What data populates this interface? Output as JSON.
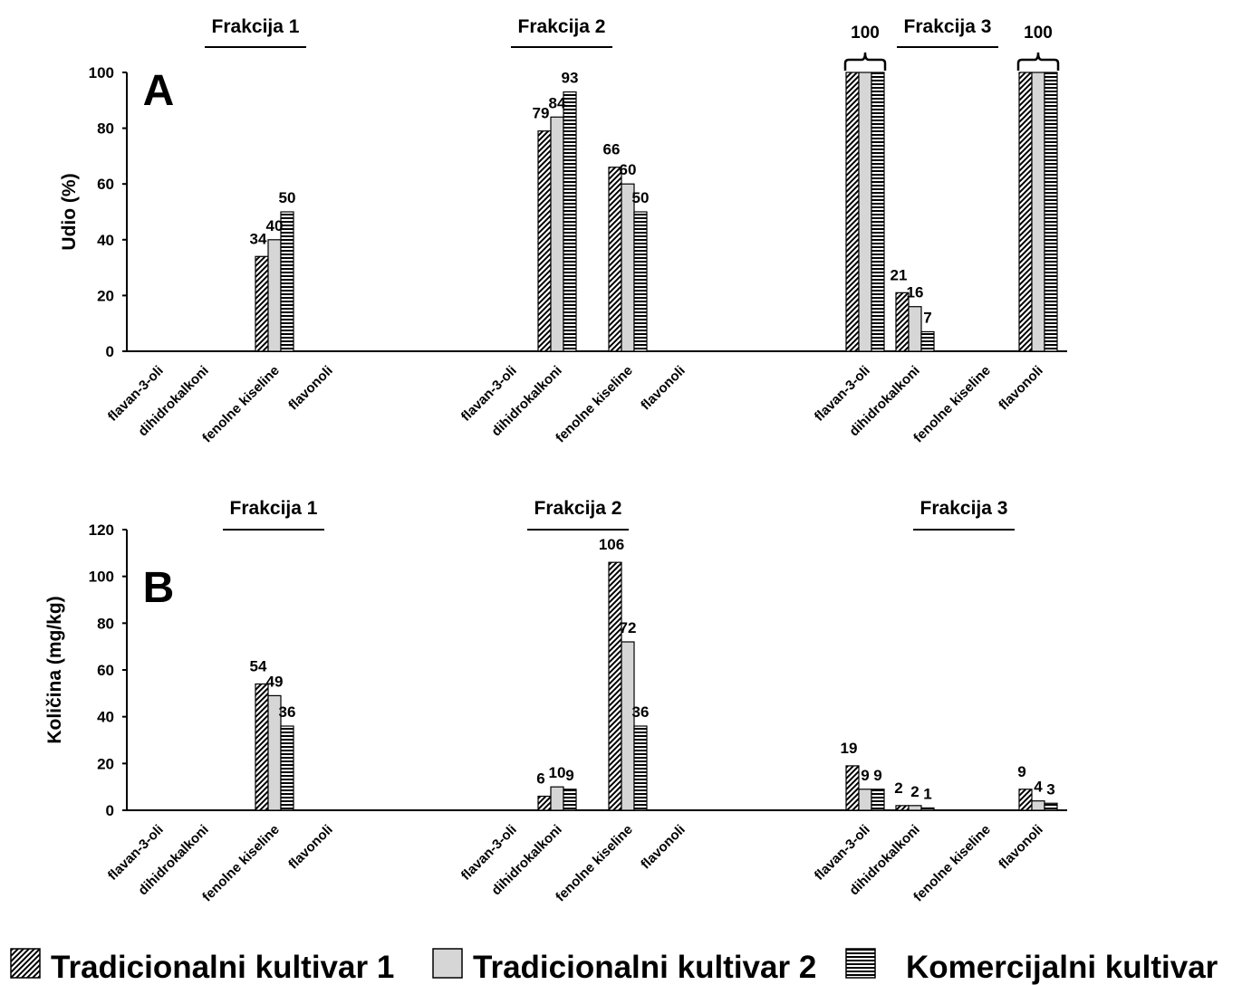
{
  "colors": {
    "axis": "#000000",
    "bar_stroke": "#000000",
    "tradicionalni_2_fill": "#d6d6d6",
    "background": "#ffffff"
  },
  "legend": {
    "items": [
      {
        "label": "Tradicionalni kultivar 1",
        "pattern": "diagonal-hatch"
      },
      {
        "label": "Tradicionalni kultivar 2",
        "pattern": "solid-gray"
      },
      {
        "label": "Komercijalni kultivar",
        "pattern": "horizontal-stripes"
      }
    ]
  },
  "chart_data": [
    {
      "type": "bar",
      "panel_letter": "A",
      "ylabel": "Udio  (%)",
      "ylim": [
        0,
        100
      ],
      "yticks": [
        "0",
        "20",
        "40",
        "60",
        "80",
        "100"
      ],
      "groups": [
        {
          "title": "Frakcija 1",
          "categories": [
            "flavan-3-oli",
            "dihidrokalkoni",
            "fenolne kiseline",
            "flavonoli"
          ]
        },
        {
          "title": "Frakcija 2",
          "categories": [
            "flavan-3-oli",
            "dihidrokalkoni",
            "fenolne kiseline",
            "flavonoli"
          ]
        },
        {
          "title": "Frakcija 3",
          "categories": [
            "flavan-3-oli",
            "dihidrokalkoni",
            "fenolne kiseline",
            "flavonoli"
          ]
        }
      ],
      "series": [
        {
          "name": "Tradicionalni kultivar 1",
          "values": [
            [
              null,
              null,
              34,
              null
            ],
            [
              null,
              79,
              66,
              null
            ],
            [
              100,
              21,
              null,
              100
            ]
          ]
        },
        {
          "name": "Tradicionalni kultivar 2",
          "values": [
            [
              null,
              null,
              40,
              null
            ],
            [
              null,
              84,
              60,
              null
            ],
            [
              100,
              16,
              null,
              100
            ]
          ]
        },
        {
          "name": "Komercijalni kultivar",
          "values": [
            [
              null,
              null,
              50,
              null
            ],
            [
              null,
              93,
              50,
              null
            ],
            [
              100,
              7,
              null,
              100
            ]
          ]
        }
      ],
      "data_labels": [
        [
          "",
          "",
          [
            "34",
            "40",
            "50"
          ],
          ""
        ],
        [
          "",
          [
            "79",
            "84",
            "93"
          ],
          [
            "66",
            "60",
            "50"
          ],
          ""
        ],
        [
          [
            "",
            "",
            ""
          ],
          [
            "21",
            "16",
            "7"
          ],
          "",
          [
            "",
            "",
            ""
          ]
        ]
      ],
      "brace_labels": [
        {
          "group": 2,
          "category": 0,
          "label": "100"
        },
        {
          "group": 2,
          "category": 3,
          "label": "100"
        }
      ]
    },
    {
      "type": "bar",
      "panel_letter": "B",
      "ylabel": "Količina  (mg/kg)",
      "ylim": [
        0,
        120
      ],
      "yticks": [
        "0",
        "20",
        "40",
        "60",
        "80",
        "100",
        "120"
      ],
      "groups": [
        {
          "title": "Frakcija 1",
          "categories": [
            "flavan-3-oli",
            "dihidrokalkoni",
            "fenolne kiseline",
            "flavonoli"
          ]
        },
        {
          "title": "Frakcija 2",
          "categories": [
            "flavan-3-oli",
            "dihidrokalkoni",
            "fenolne kiseline",
            "flavonoli"
          ]
        },
        {
          "title": "Frakcija 3",
          "categories": [
            "flavan-3-oli",
            "dihidrokalkoni",
            "fenolne kiseline",
            "flavonoli"
          ]
        }
      ],
      "series": [
        {
          "name": "Tradicionalni kultivar 1",
          "values": [
            [
              null,
              null,
              54,
              null
            ],
            [
              null,
              6,
              106,
              null
            ],
            [
              19,
              2,
              null,
              9
            ]
          ]
        },
        {
          "name": "Tradicionalni kultivar 2",
          "values": [
            [
              null,
              null,
              49,
              null
            ],
            [
              null,
              10,
              72,
              null
            ],
            [
              9,
              2,
              null,
              4
            ]
          ]
        },
        {
          "name": "Komercijalni kultivar",
          "values": [
            [
              null,
              null,
              36,
              null
            ],
            [
              null,
              9,
              36,
              null
            ],
            [
              9,
              1,
              null,
              3
            ]
          ]
        }
      ],
      "data_labels": [
        [
          "",
          "",
          [
            "54",
            "49",
            "36"
          ],
          ""
        ],
        [
          "",
          [
            "6",
            "10",
            "9"
          ],
          [
            "106",
            "72",
            "36"
          ],
          ""
        ],
        [
          [
            "19",
            "9",
            "9"
          ],
          [
            "2",
            "2",
            "1"
          ],
          "",
          [
            "9",
            "4",
            "3"
          ]
        ]
      ],
      "brace_labels": []
    }
  ]
}
